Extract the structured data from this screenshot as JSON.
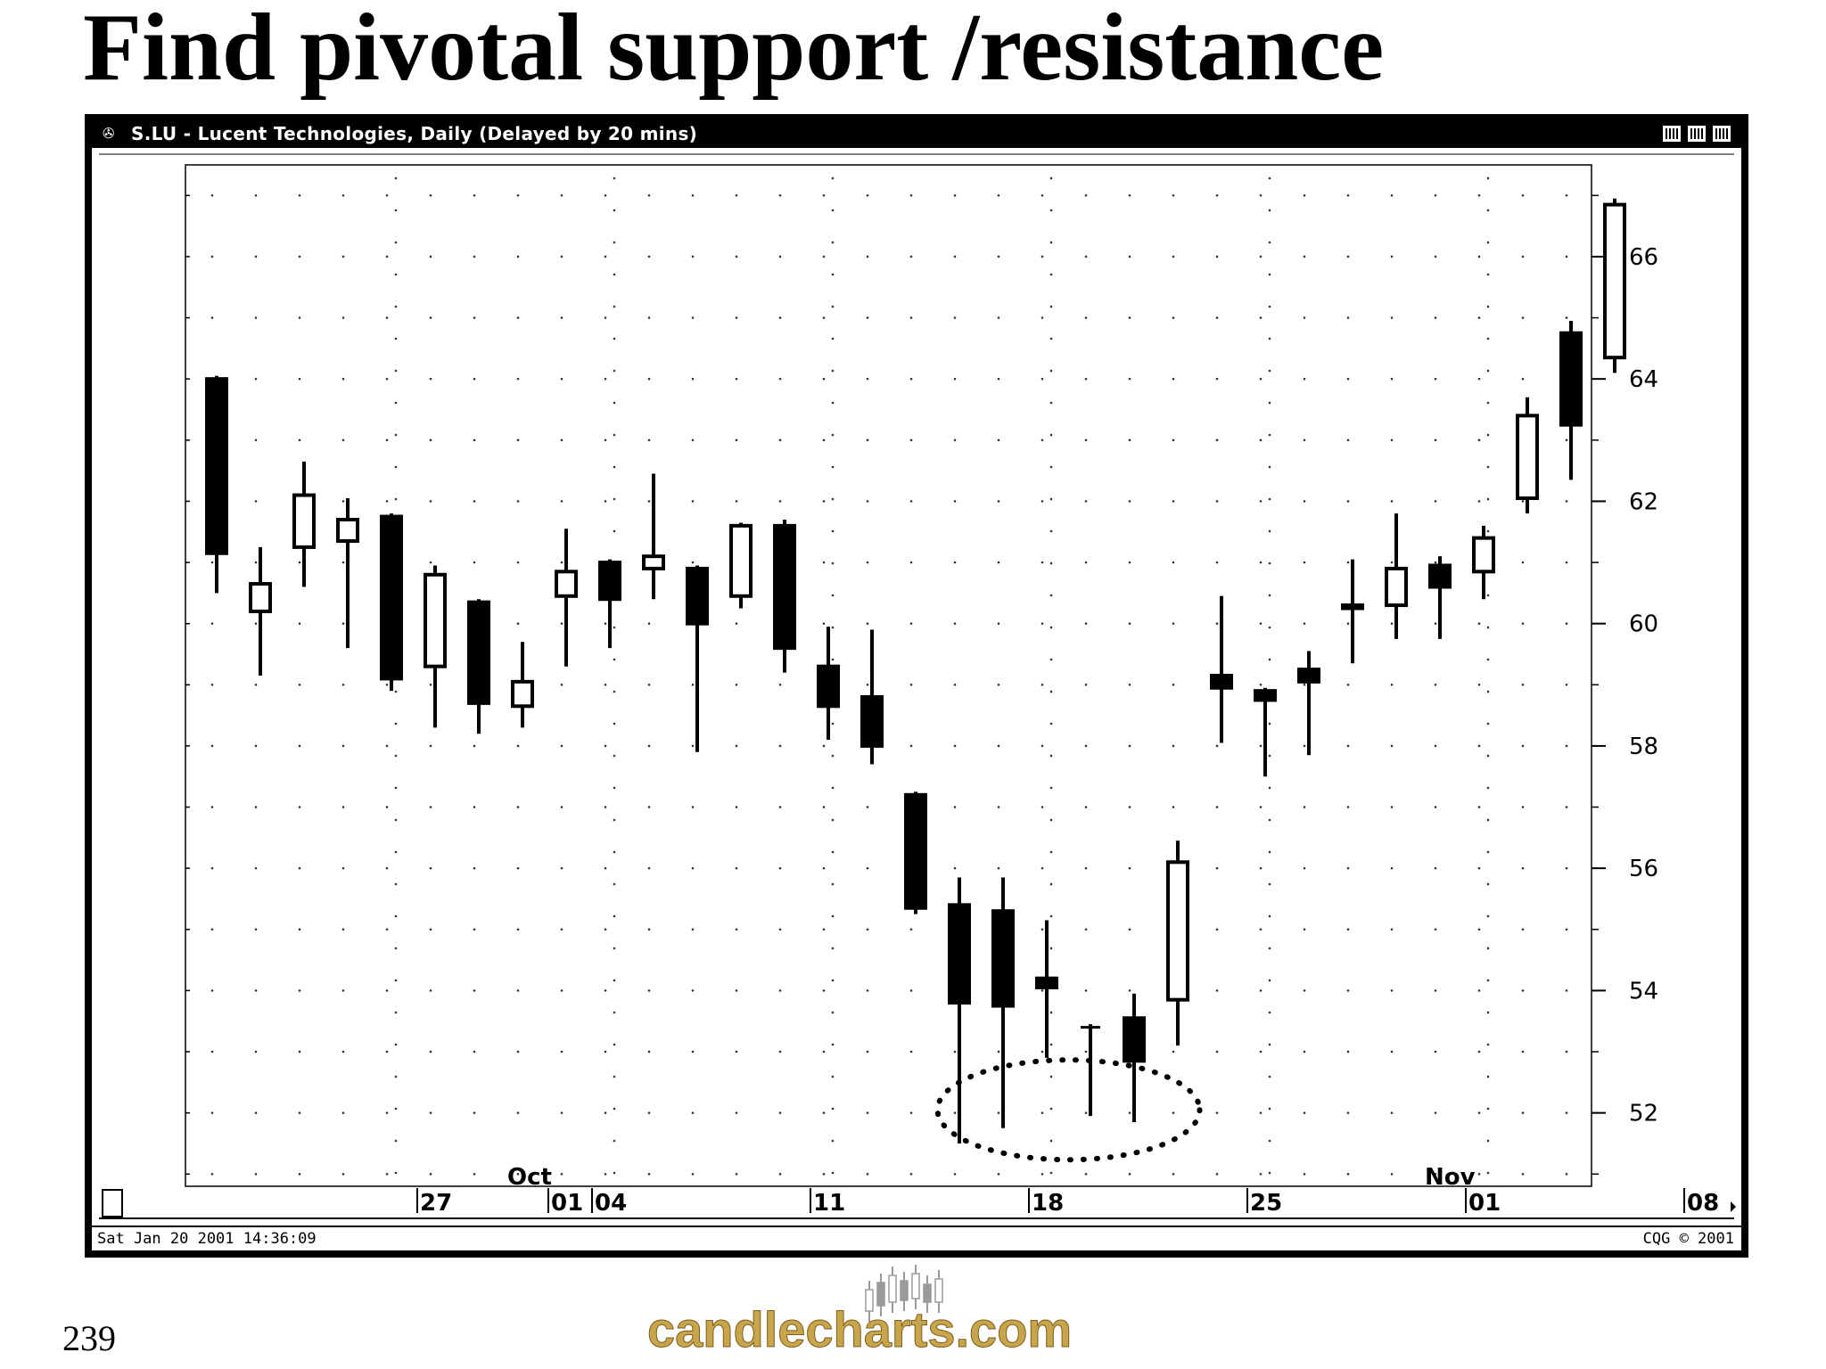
{
  "slide": {
    "title": "Find pivotal support /resistance",
    "page_number": "239",
    "logo_text": "candlecharts.com"
  },
  "window": {
    "icon": "candlestick-icon",
    "title": "S.LU - Lucent Technologies, Daily (Delayed by 20 mins)",
    "status_left": "Sat Jan 20 2001 14:36:09",
    "status_right": "CQG © 2001"
  },
  "colors": {
    "candle": "#000000",
    "background": "#ffffff",
    "logo_gold": "#c8a44a",
    "logo_gray": "#9a9a9a"
  },
  "chart_data": {
    "type": "candlestick",
    "title": "",
    "ylim": [
      50.8,
      67.5
    ],
    "y_ticks": [
      52,
      54,
      56,
      58,
      60,
      62,
      64,
      66
    ],
    "y_tick_labels": [
      "52",
      "54",
      "56",
      "58",
      "60",
      "62",
      "64",
      "66"
    ],
    "x_tick_labels": [
      {
        "index": 5,
        "label": "27"
      },
      {
        "index": 8,
        "label": "01"
      },
      {
        "index": 9,
        "label": "04"
      },
      {
        "index": 14,
        "label": "11"
      },
      {
        "index": 19,
        "label": "18"
      },
      {
        "index": 24,
        "label": "25"
      },
      {
        "index": 29,
        "label": "01"
      },
      {
        "index": 34,
        "label": "08"
      }
    ],
    "month_labels": [
      {
        "index": 7,
        "label": "Oct"
      },
      {
        "index": 28,
        "label": "Nov"
      }
    ],
    "grid": "dotted",
    "annotation": "dotted ellipse around the lows of the Oct 18-24 candles",
    "candles": [
      {
        "o": 64.0,
        "h": 64.05,
        "l": 60.5,
        "c": 61.15
      },
      {
        "o": 60.2,
        "h": 61.25,
        "l": 59.15,
        "c": 60.65
      },
      {
        "o": 61.25,
        "h": 62.65,
        "l": 60.6,
        "c": 62.1
      },
      {
        "o": 61.35,
        "h": 62.05,
        "l": 59.6,
        "c": 61.7
      },
      {
        "o": 61.75,
        "h": 61.8,
        "l": 58.9,
        "c": 59.1
      },
      {
        "o": 59.3,
        "h": 60.95,
        "l": 58.3,
        "c": 60.8
      },
      {
        "o": 60.35,
        "h": 60.4,
        "l": 58.2,
        "c": 58.7
      },
      {
        "o": 58.65,
        "h": 59.7,
        "l": 58.3,
        "c": 59.05
      },
      {
        "o": 60.45,
        "h": 61.55,
        "l": 59.3,
        "c": 60.85
      },
      {
        "o": 61.0,
        "h": 61.05,
        "l": 59.6,
        "c": 60.4
      },
      {
        "o": 60.9,
        "h": 62.45,
        "l": 60.4,
        "c": 61.1
      },
      {
        "o": 60.9,
        "h": 60.95,
        "l": 57.9,
        "c": 60.0
      },
      {
        "o": 60.45,
        "h": 61.65,
        "l": 60.25,
        "c": 61.6
      },
      {
        "o": 61.6,
        "h": 61.7,
        "l": 59.2,
        "c": 59.6
      },
      {
        "o": 59.3,
        "h": 59.95,
        "l": 58.1,
        "c": 58.65
      },
      {
        "o": 58.8,
        "h": 59.9,
        "l": 57.7,
        "c": 58.0
      },
      {
        "o": 57.2,
        "h": 57.25,
        "l": 55.25,
        "c": 55.35
      },
      {
        "o": 55.4,
        "h": 55.85,
        "l": 51.5,
        "c": 53.8
      },
      {
        "o": 55.3,
        "h": 55.85,
        "l": 51.75,
        "c": 53.75
      },
      {
        "o": 54.2,
        "h": 55.15,
        "l": 52.9,
        "c": 54.05
      },
      {
        "o": 53.4,
        "h": 53.45,
        "l": 51.95,
        "c": 53.4
      },
      {
        "o": 53.55,
        "h": 53.95,
        "l": 51.85,
        "c": 52.85
      },
      {
        "o": 53.85,
        "h": 56.45,
        "l": 53.1,
        "c": 56.1
      },
      {
        "o": 59.15,
        "h": 60.45,
        "l": 58.05,
        "c": 58.95
      },
      {
        "o": 58.9,
        "h": 58.95,
        "l": 57.5,
        "c": 58.75
      },
      {
        "o": 59.25,
        "h": 59.55,
        "l": 57.85,
        "c": 59.05
      },
      {
        "o": 60.3,
        "h": 61.05,
        "l": 59.35,
        "c": 60.25
      },
      {
        "o": 60.3,
        "h": 61.8,
        "l": 59.75,
        "c": 60.9
      },
      {
        "o": 60.95,
        "h": 61.1,
        "l": 59.75,
        "c": 60.6
      },
      {
        "o": 60.85,
        "h": 61.6,
        "l": 60.4,
        "c": 61.4
      },
      {
        "o": 62.05,
        "h": 63.7,
        "l": 61.8,
        "c": 63.4
      },
      {
        "o": 64.75,
        "h": 64.95,
        "l": 62.35,
        "c": 63.25
      },
      {
        "o": 64.35,
        "h": 66.95,
        "l": 64.1,
        "c": 66.85
      }
    ]
  }
}
